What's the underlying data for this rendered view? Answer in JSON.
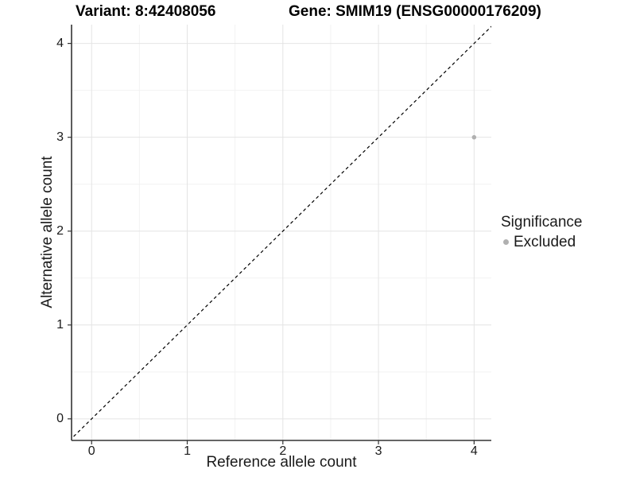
{
  "header": {
    "variant_title": "Variant: 8:42408056",
    "gene_title": "Gene: SMIM19 (ENSG00000176209)"
  },
  "chart_data": {
    "type": "scatter",
    "title_left": "Variant: 8:42408056",
    "title_right": "Gene: SMIM19 (ENSG00000176209)",
    "xlabel": "Reference allele count",
    "ylabel": "Alternative allele count",
    "x_ticks": [
      0,
      1,
      2,
      3,
      4
    ],
    "y_ticks": [
      0,
      1,
      2,
      3,
      4
    ],
    "x_minor_ticks": [
      0.5,
      1.5,
      2.5,
      3.5
    ],
    "y_minor_ticks": [
      0.5,
      1.5,
      2.5,
      3.5
    ],
    "xlim": [
      -0.21,
      4.18
    ],
    "ylim": [
      -0.23,
      4.2
    ],
    "grid": "on",
    "background_color": "#ffffff",
    "major_grid_color": "#e4e4e4",
    "minor_grid_color": "#f2f2f2",
    "axis_color": "#333333",
    "points": [
      {
        "x": 4,
        "y": 3,
        "series": "Excluded"
      }
    ],
    "point_color": "#b0b0b0",
    "point_radius": 2.8,
    "reference_line": {
      "type": "identity y=x",
      "style": "dashed",
      "color": "#000000"
    },
    "legend": {
      "title": "Significance",
      "position": "right",
      "entries": [
        {
          "label": "Excluded",
          "color": "#b0b0b0"
        }
      ]
    }
  }
}
